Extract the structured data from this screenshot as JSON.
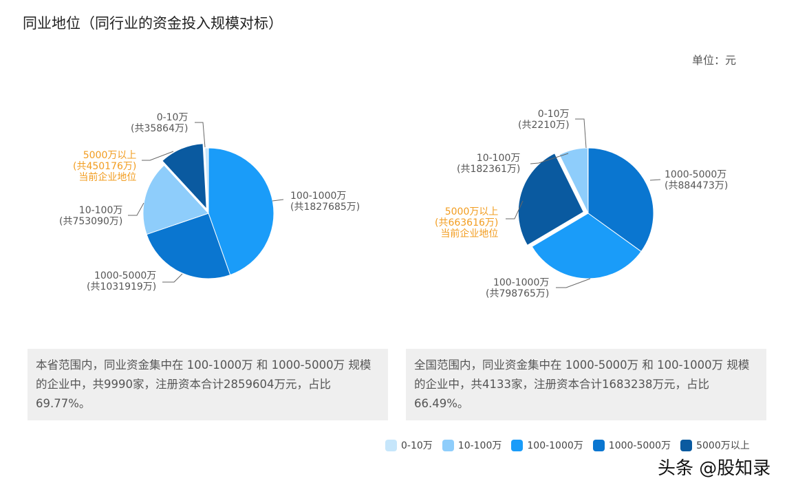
{
  "title": "同业地位（同行业的资金投入规模对标）",
  "unit": "单位：元",
  "colors": {
    "0-10万": "#c6e6fb",
    "10-100万": "#8ecdfb",
    "100-1000万": "#1a9cf9",
    "1000-5000万": "#0a76d0",
    "5000万以上": "#0a5aa0",
    "highlight": "#f29c1f"
  },
  "chart_data": [
    {
      "type": "pie",
      "categories": [
        "100-1000万",
        "1000-5000万",
        "10-100万",
        "5000万以上",
        "0-10万"
      ],
      "values": [
        1827685,
        1031919,
        753090,
        450176,
        35864
      ],
      "labels": [
        "100-1000万",
        "(共1827685万)",
        "1000-5000万",
        "(共1031919万)",
        "10-100万",
        "(共753090万)",
        "5000万以上",
        "(共450176万)",
        "0-10万",
        "(共35864万)"
      ],
      "highlight": "5000万以上",
      "highlight_note": "当前企业地位"
    },
    {
      "type": "pie",
      "categories": [
        "1000-5000万",
        "100-1000万",
        "5000万以上",
        "10-100万",
        "0-10万"
      ],
      "values": [
        884473,
        798765,
        663616,
        182361,
        2210
      ],
      "labels": [
        "1000-5000万",
        "(共884473万)",
        "100-1000万",
        "(共798765万)",
        "5000万以上",
        "(共663616万)",
        "10-100万",
        "(共182361万)",
        "0-10万",
        "(共2210万)"
      ],
      "highlight": "5000万以上",
      "highlight_note": "当前企业地位"
    }
  ],
  "summaries": [
    "本省范围内，同业资金集中在 100-1000万 和 1000-5000万 规模的企业中，共9990家，注册资本合计2859604万元，占比69.77%。",
    "全国范围内，同业资金集中在 1000-5000万 和 100-1000万 规模的企业中，共4133家，注册资本合计1683238万元，占比66.49%。"
  ],
  "legend": [
    "0-10万",
    "10-100万",
    "100-1000万",
    "1000-5000万",
    "5000万以上"
  ],
  "watermark": "头条 @股知录"
}
